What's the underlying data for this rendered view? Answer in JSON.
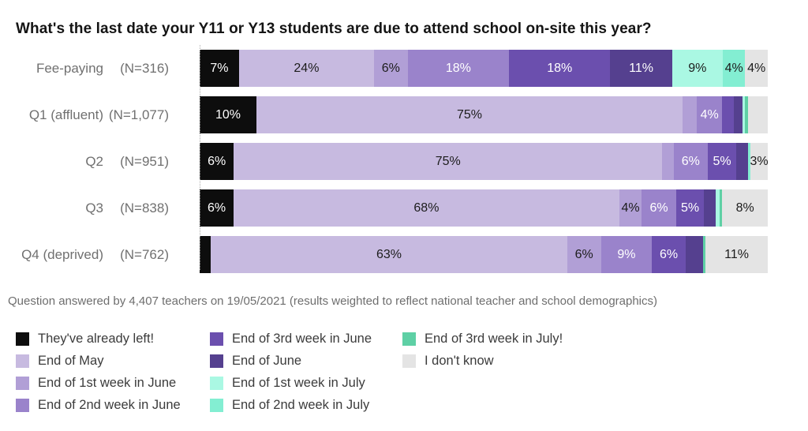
{
  "title": "What's the last date your Y11 or Y13 students are due to attend school on-site this year?",
  "footnote": "Question answered by 4,407 teachers on 19/05/2021 (results weighted to reflect national teacher and school demographics)",
  "chart_data": {
    "type": "bar",
    "stacked": true,
    "orientation": "horizontal",
    "unit": "percent",
    "xlim": [
      0,
      100
    ],
    "grid": false,
    "legend_position": "bottom",
    "categories": [
      "Fee-paying",
      "Q1 (affluent)",
      "Q2",
      "Q3",
      "Q4 (deprived)"
    ],
    "sample_sizes": [
      "(N=316)",
      "(N=1,077)",
      "(N=951)",
      "(N=838)",
      "(N=762)"
    ],
    "series": [
      {
        "name": "They've already left!",
        "color": "#0d0d0d",
        "values": [
          7,
          10,
          6,
          6,
          2
        ]
      },
      {
        "name": "End of May",
        "color": "#c7bae0",
        "values": [
          24,
          75,
          75,
          68,
          63
        ]
      },
      {
        "name": "End of 1st week in June",
        "color": "#b19fd6",
        "values": [
          6,
          2.5,
          2,
          4,
          6
        ]
      },
      {
        "name": "End of 2nd week in June",
        "color": "#9a83cb",
        "values": [
          18,
          4.5,
          6,
          6,
          9
        ]
      },
      {
        "name": "End of 3rd week in June",
        "color": "#6b4fae",
        "values": [
          18,
          2,
          5,
          5,
          6
        ]
      },
      {
        "name": "End of June",
        "color": "#55408f",
        "values": [
          11,
          1.5,
          2,
          2,
          3
        ]
      },
      {
        "name": "End of 1st week in July",
        "color": "#aaf8e3",
        "values": [
          9,
          0.5,
          0,
          0.7,
          0
        ]
      },
      {
        "name": "End of 2nd week in July",
        "color": "#83eed2",
        "values": [
          4,
          0,
          0.5,
          0,
          0
        ]
      },
      {
        "name": "End of 3rd week in July!",
        "color": "#5ed0a5",
        "values": [
          0,
          0.5,
          0,
          0.5,
          0.5
        ]
      },
      {
        "name": "I don't know",
        "color": "#e4e4e4",
        "values": [
          4,
          3.5,
          3,
          8,
          11
        ]
      }
    ],
    "labels_shown": [
      [
        "7%",
        "24%",
        "6%",
        "18%",
        "18%",
        "11%",
        "9%",
        "4%",
        "",
        "4%"
      ],
      [
        "10%",
        "75%",
        "",
        "4%",
        "",
        "",
        "",
        "",
        "",
        ""
      ],
      [
        "6%",
        "75%",
        "",
        "6%",
        "5%",
        "",
        "",
        "",
        "",
        "3%"
      ],
      [
        "6%",
        "68%",
        "4%",
        "6%",
        "5%",
        "",
        "",
        "",
        "",
        "8%"
      ],
      [
        "",
        "63%",
        "6%",
        "9%",
        "6%",
        "",
        "",
        "",
        "",
        "11%"
      ]
    ],
    "white_text_series": [
      0,
      3,
      4,
      5
    ]
  },
  "legend": {
    "columns": [
      [
        0,
        1,
        2,
        3
      ],
      [
        4,
        5,
        6,
        7
      ],
      [
        8,
        9
      ]
    ]
  }
}
